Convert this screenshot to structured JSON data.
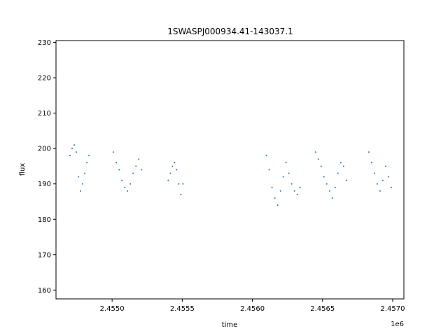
{
  "chart_data": {
    "type": "scatter",
    "title": "1SWASPJ000934.41-143037.1",
    "xlabel": "time",
    "ylabel": "flux",
    "x_offset_label": "1e6",
    "xlim": [
      2454600,
      2457080
    ],
    "ylim": [
      157.5,
      230.5
    ],
    "x_ticks": [
      {
        "value": 2455000,
        "label": "2.4550"
      },
      {
        "value": 2455500,
        "label": "2.4555"
      },
      {
        "value": 2456000,
        "label": "2.4560"
      },
      {
        "value": 2456500,
        "label": "2.4565"
      },
      {
        "value": 2457000,
        "label": "2.4570"
      }
    ],
    "y_ticks": [
      {
        "value": 160,
        "label": "160"
      },
      {
        "value": 170,
        "label": "170"
      },
      {
        "value": 180,
        "label": "180"
      },
      {
        "value": 190,
        "label": "190"
      },
      {
        "value": 200,
        "label": "200"
      },
      {
        "value": 210,
        "label": "210"
      },
      {
        "value": 220,
        "label": "220"
      },
      {
        "value": 230,
        "label": "230"
      }
    ],
    "grid": false,
    "marker_color": "#1f77b4",
    "series": [
      {
        "x": [
          2454700,
          2454715,
          2454730,
          2454745,
          2454760,
          2454775,
          2454790,
          2454805,
          2454820,
          2454835,
          2455010,
          2455030,
          2455050,
          2455070,
          2455090,
          2455110,
          2455130,
          2455150,
          2455170,
          2455190,
          2455210,
          2455400,
          2455415,
          2455430,
          2455445,
          2455460,
          2455475,
          2455490,
          2455505,
          2456100,
          2456120,
          2456140,
          2456160,
          2456180,
          2456200,
          2456220,
          2456240,
          2456260,
          2456280,
          2456300,
          2456320,
          2456340,
          2456450,
          2456470,
          2456490,
          2456510,
          2456530,
          2456550,
          2456570,
          2456590,
          2456610,
          2456630,
          2456650,
          2456670,
          2456830,
          2456850,
          2456870,
          2456890,
          2456910,
          2456930,
          2456950,
          2456970,
          2456990
        ],
        "y": [
          198,
          200,
          201,
          199,
          192,
          188,
          190,
          193,
          196,
          198,
          199,
          196,
          194,
          191,
          189,
          188,
          190,
          193,
          195,
          197,
          194,
          191,
          193,
          195,
          196,
          194,
          190,
          187,
          190,
          198,
          194,
          189,
          186,
          184,
          188,
          192,
          196,
          193,
          190,
          188,
          187,
          189,
          199,
          197,
          195,
          192,
          190,
          188,
          186,
          189,
          193,
          196,
          195,
          191,
          199,
          196,
          193,
          190,
          188,
          191,
          195,
          192,
          189
        ]
      }
    ]
  }
}
